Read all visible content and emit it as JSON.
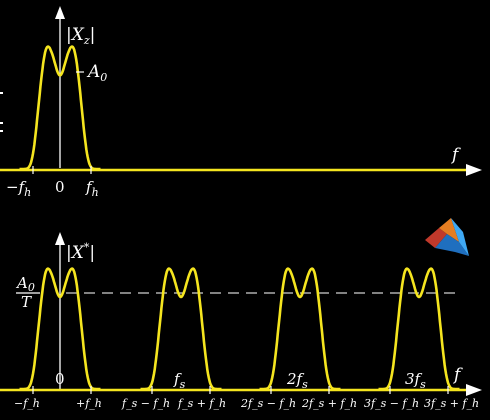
{
  "colors": {
    "background": "#000000",
    "curve": "#f5e51f",
    "axis": "#ffffff",
    "dashed": "#cfcfcf"
  },
  "top_plot": {
    "y_label": "|X_z|",
    "y_label_parts": {
      "base": "X",
      "sub": "z"
    },
    "amplitude_label": {
      "base": "A",
      "sub": "0"
    },
    "x_axis_label": "f",
    "ticks": [
      {
        "id": "neg-fh",
        "base": "−f",
        "sub": "h"
      },
      {
        "id": "zero",
        "base": "0",
        "sub": ""
      },
      {
        "id": "fh",
        "base": "f",
        "sub": "h"
      }
    ]
  },
  "bottom_plot": {
    "y_label": "|X*|",
    "y_label_parts": {
      "base": "X",
      "sup": "*"
    },
    "level_label": {
      "num_base": "A",
      "num_sub": "0",
      "den": "T"
    },
    "x_axis_label": "f",
    "center_labels": [
      {
        "id": "zero",
        "text": "0"
      },
      {
        "id": "fs",
        "base": "f",
        "sub": "s"
      },
      {
        "id": "2fs",
        "pre": "2",
        "base": "f",
        "sub": "s"
      },
      {
        "id": "3fs",
        "pre": "3",
        "base": "f",
        "sub": "s"
      }
    ],
    "ticks": [
      {
        "id": "t0",
        "text": "−f_h"
      },
      {
        "id": "t1",
        "text": "+f_h"
      },
      {
        "id": "t2",
        "text": "f_s − f_h"
      },
      {
        "id": "t3",
        "text": "f_s + f_h"
      },
      {
        "id": "t4",
        "text": "2f_s − f_h"
      },
      {
        "id": "t5",
        "text": "2f_s + f_h"
      },
      {
        "id": "t6",
        "text": "3f_s − f_h"
      },
      {
        "id": "t7",
        "text": "3f_s + f_h"
      }
    ]
  },
  "logo": {
    "icon": "matlab-logo-icon"
  }
}
